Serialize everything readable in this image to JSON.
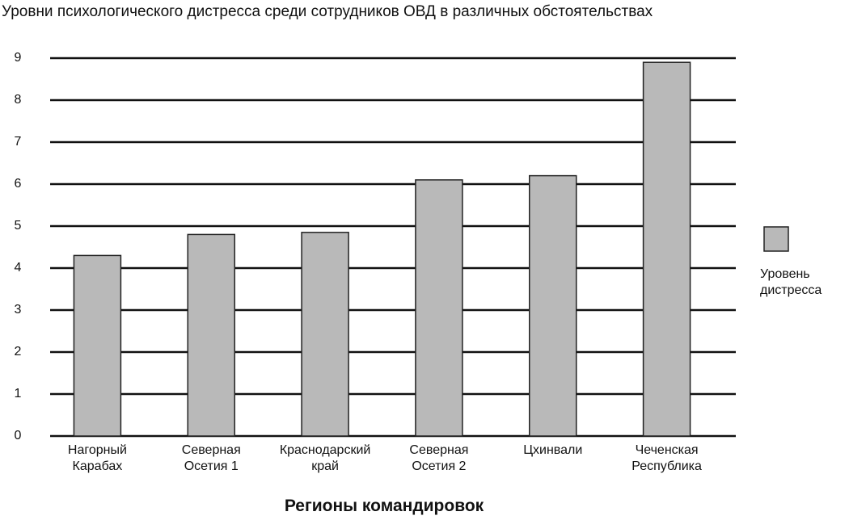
{
  "chart_data": {
    "type": "bar",
    "title": "Уровни психологического дистресса среди сотрудников ОВД в различных обстоятельствах",
    "xlabel": "Регионы командировок",
    "categories": [
      "Нагорный Карабах",
      "Северная Осетия 1",
      "Краснодарский край",
      "Северная Осетия 2",
      "Цхинвали",
      "Чеченская Республика"
    ],
    "series": [
      {
        "name": "Уровень дистресса",
        "color": "#b9b9b9",
        "values": [
          4.3,
          4.8,
          4.85,
          6.1,
          6.2,
          8.9
        ]
      }
    ],
    "ylim": [
      0,
      9
    ],
    "yticks": [
      0,
      1,
      2,
      3,
      4,
      5,
      6,
      7,
      8,
      9
    ],
    "grid": true,
    "legend": "right"
  }
}
